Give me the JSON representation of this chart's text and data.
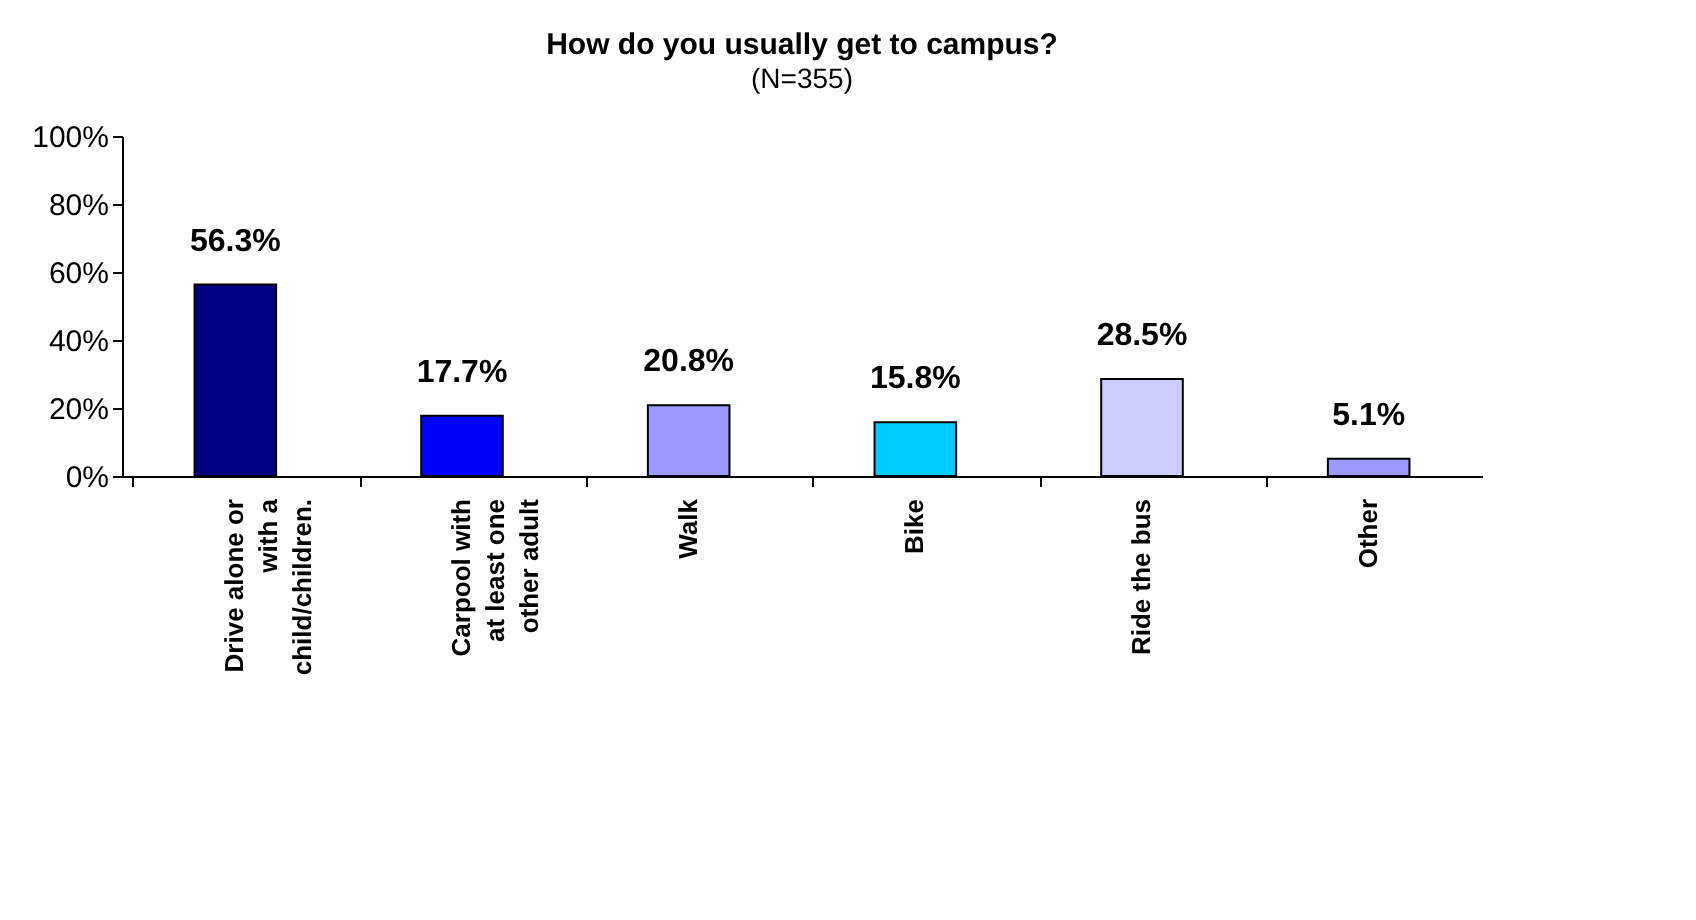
{
  "chart_data": {
    "type": "bar",
    "title": "How do you usually get to campus?",
    "subtitle": "(N=355)",
    "categories": [
      "Drive alone or\nwith a\nchild/children.",
      "Carpool with\nat least one\nother adult",
      "Walk",
      "Bike",
      "Ride the bus",
      "Other"
    ],
    "values": [
      56.3,
      17.7,
      20.8,
      15.8,
      28.5,
      5.1
    ],
    "colors": [
      "#000080",
      "#0000ff",
      "#9999ff",
      "#00ccff",
      "#ccccff",
      "#9999ff"
    ],
    "ylim": [
      0,
      100
    ],
    "yticks": [
      {
        "value": 0,
        "label": "0%"
      },
      {
        "value": 20,
        "label": "20%"
      },
      {
        "value": 40,
        "label": "40%"
      },
      {
        "value": 60,
        "label": "60%"
      },
      {
        "value": 80,
        "label": "80%"
      },
      {
        "value": 100,
        "label": "100%"
      }
    ],
    "value_labels": [
      "56.3%",
      "17.7%",
      "20.8%",
      "15.8%",
      "28.5%",
      "5.1%"
    ],
    "grid": false,
    "legend": false
  }
}
